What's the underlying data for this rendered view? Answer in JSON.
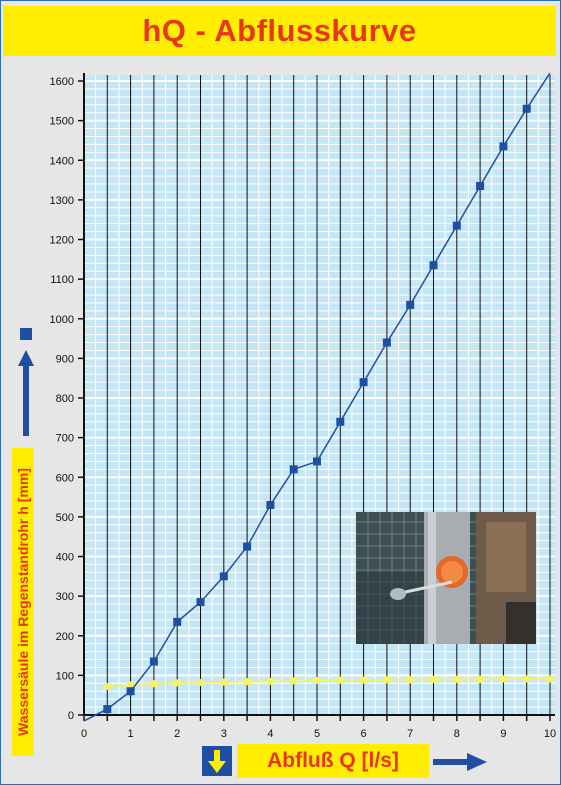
{
  "title": "hQ - Abflusskurve",
  "ylabel": "Wassersäule im Regenstandrohr h [mm]",
  "xlabel": "Abfluß Q [l/s]",
  "colors": {
    "title_bg": "#ffee00",
    "title_text": "#e8351c",
    "plot_bg": "#c5e6f4",
    "series_main": "#1f4fa2",
    "series_reference": "#f7f16a",
    "frame": "#2b6fb2"
  },
  "icons": [
    "square-marker-icon",
    "up-arrow-icon",
    "down-arrow-icon",
    "right-arrow-icon"
  ],
  "chart_data": {
    "type": "line",
    "xlim": [
      0,
      10
    ],
    "ylim": [
      0,
      1600
    ],
    "x_ticks": [
      0,
      0.5,
      1,
      1.5,
      2,
      2.5,
      3,
      3.5,
      4,
      4.5,
      5,
      5.5,
      6,
      6.5,
      7,
      7.5,
      8,
      8.5,
      9,
      9.5,
      10
    ],
    "x_tick_labels": [
      "0",
      "1",
      "2",
      "3",
      "4",
      "5",
      "6",
      "7",
      "8",
      "9",
      "10"
    ],
    "y_tick_labels": [
      "0",
      "100",
      "200",
      "300",
      "400",
      "500",
      "600",
      "700",
      "800",
      "900",
      "1000",
      "1100",
      "1200",
      "1300",
      "1400",
      "1500",
      "1600"
    ],
    "grid": true,
    "series": [
      {
        "x": [
          0.5,
          1,
          1.5,
          2,
          2.5,
          3,
          3.5,
          4,
          4.5,
          5,
          5.5,
          6,
          6.5,
          7,
          7.5,
          8,
          8.5,
          9,
          9.5
        ],
        "values": [
          15,
          60,
          135,
          235,
          285,
          350,
          425,
          530,
          620,
          640,
          740,
          840,
          940,
          1035,
          1135,
          1235,
          1335,
          1435,
          1530
        ],
        "line_extends_to": [
          [
            0,
            -15
          ],
          [
            10,
            1620
          ]
        ]
      },
      {
        "x": [
          0.5,
          1,
          1.5,
          2,
          2.5,
          3,
          3.5,
          4,
          4.5,
          5,
          5.5,
          6,
          6.5,
          7,
          7.5,
          8,
          8.5,
          9,
          9.5,
          10
        ],
        "values": [
          72,
          76,
          79,
          81,
          82,
          83,
          84,
          85,
          86,
          87,
          88,
          88,
          89,
          89,
          90,
          90,
          90,
          91,
          91,
          91
        ]
      }
    ]
  },
  "photo": {
    "kind": "photo",
    "subject": "rain standpipe gauge with orange cap and wire mesh background"
  }
}
